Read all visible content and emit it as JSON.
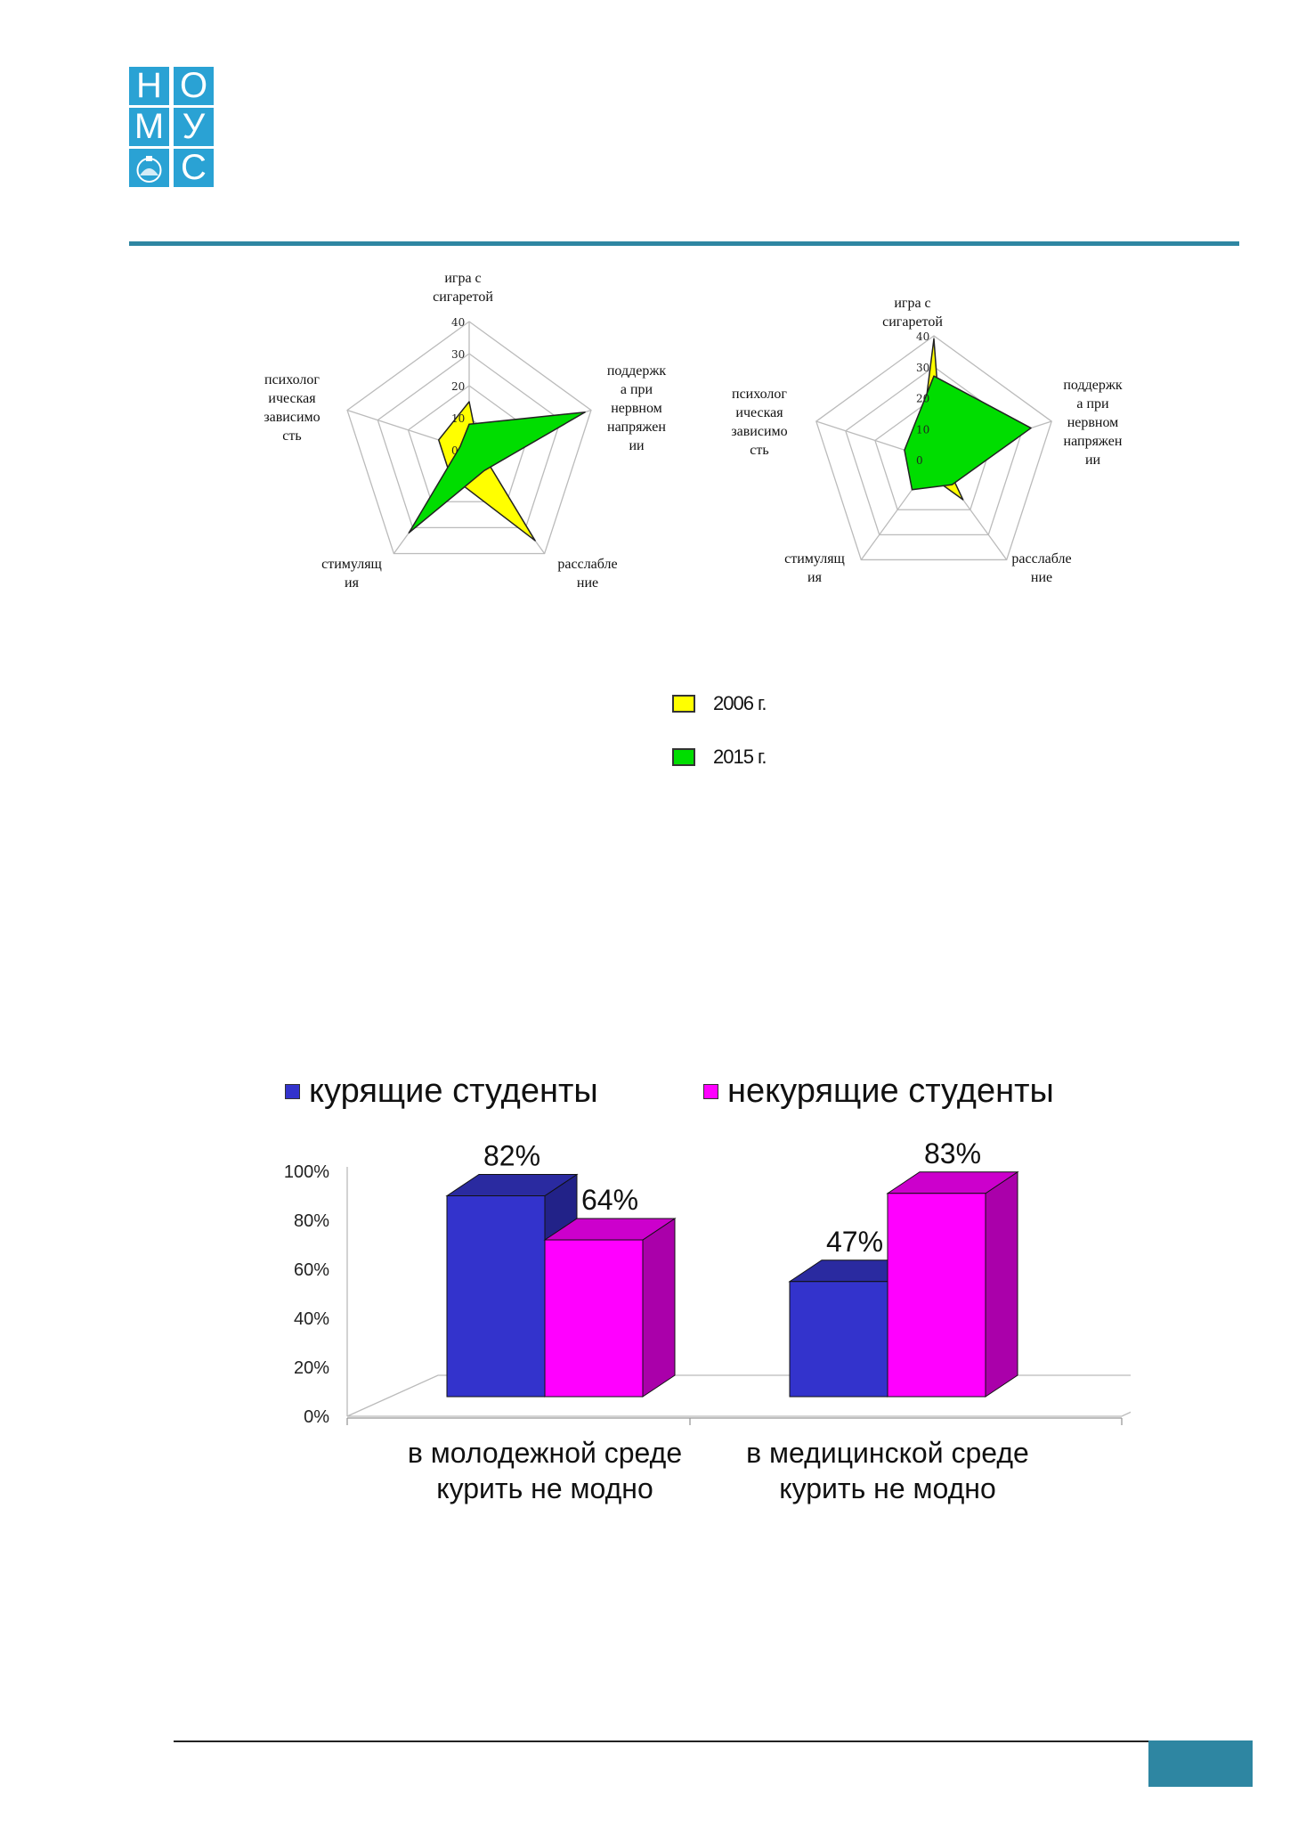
{
  "logo": {
    "letters": [
      "Н",
      "О",
      "М",
      "У",
      "",
      "С"
    ],
    "color": "#2aa2d4"
  },
  "accent_color": "#2e86a2",
  "chart_data": [
    {
      "type": "radar",
      "axes": [
        "игра с\nсигаретой",
        "поддержк\nа при\nнервном\nнапряжен\nии",
        "расслабле\nние",
        "стимулящ\nия",
        "психолог\nическая\nзависимо\nсть"
      ],
      "rlim": [
        0,
        40
      ],
      "ticks": [
        "0",
        "10",
        "20",
        "30",
        "40"
      ],
      "series": [
        {
          "name": "2006 г.",
          "color": "#ffff00",
          "values": [
            15,
            3,
            35,
            10,
            10
          ]
        },
        {
          "name": "2015 г.",
          "color": "#00dd00",
          "values": [
            8,
            38,
            8,
            32,
            3
          ]
        }
      ]
    },
    {
      "type": "radar",
      "axes": [
        "игра с\nсигаретой",
        "поддержк\nа при\nнервном\nнапряжен\nии",
        "расслабле\nние",
        "стимулящ\nия",
        "психолог\nическая\nзависимо\nсть"
      ],
      "rlim": [
        0,
        40
      ],
      "ticks": [
        "0",
        "10",
        "20",
        "30",
        "40"
      ],
      "series": [
        {
          "name": "2006 г.",
          "color": "#ffff00",
          "values": [
            39,
            3,
            16,
            5,
            5
          ]
        },
        {
          "name": "2015 г.",
          "color": "#00dd00",
          "values": [
            27,
            33,
            10,
            12,
            10
          ]
        }
      ]
    },
    {
      "type": "bar",
      "categories": [
        "в молодежной среде\nкурить не модно",
        "в медицинской среде\nкурить не модно"
      ],
      "series": [
        {
          "name": "курящие студенты",
          "color": "#3333cc",
          "values": [
            82,
            47
          ]
        },
        {
          "name": "некурящие студенты",
          "color": "#ff00ff",
          "values": [
            64,
            83
          ]
        }
      ],
      "data_labels": [
        [
          "82%",
          "47%"
        ],
        [
          "64%",
          "83%"
        ]
      ],
      "ylim": [
        0,
        100
      ],
      "yticks": [
        "0%",
        "20%",
        "40%",
        "60%",
        "80%",
        "100%"
      ],
      "legend_position": "top"
    }
  ],
  "legend": {
    "items": [
      {
        "label": "2006 г.",
        "color": "#ffff00"
      },
      {
        "label": "2015 г.",
        "color": "#00dd00"
      }
    ]
  }
}
